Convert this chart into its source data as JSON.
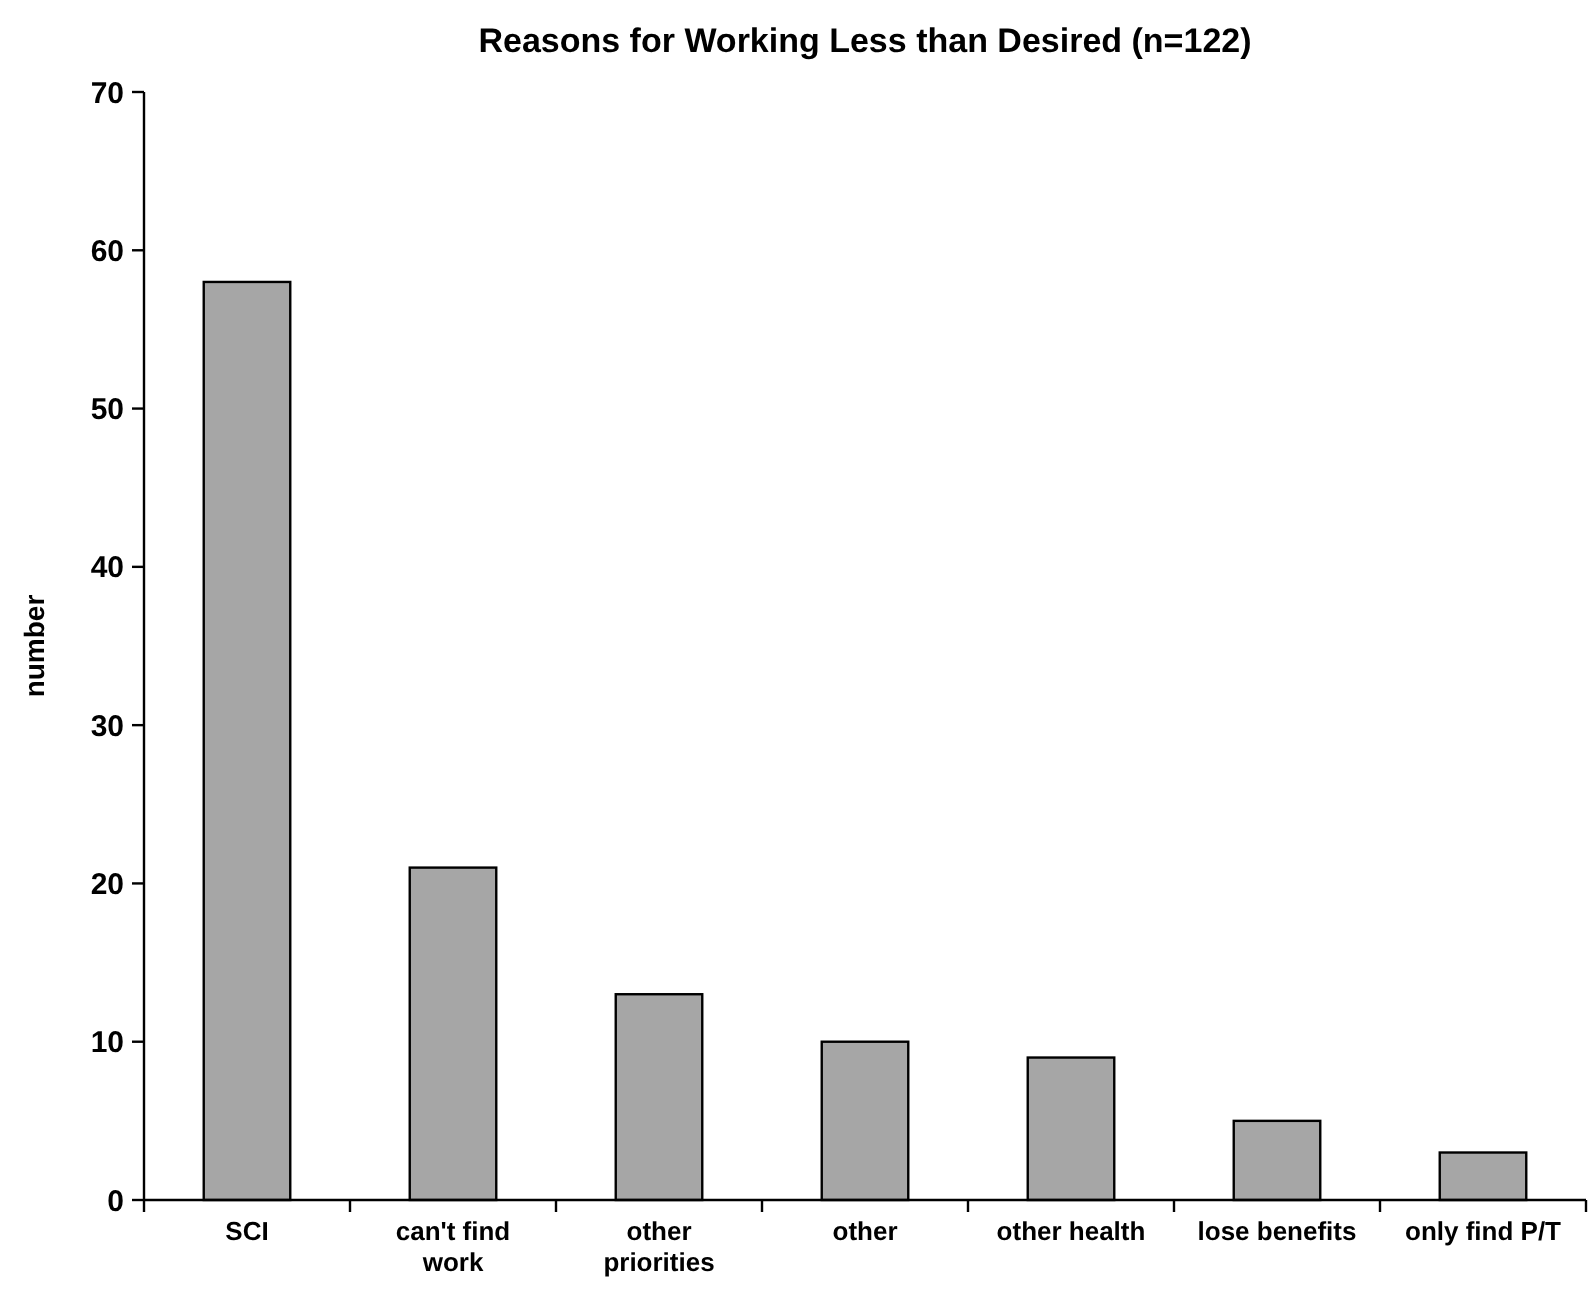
{
  "chart_data": {
    "type": "bar",
    "title": "Reasons for Working Less than Desired (n=122)",
    "ylabel": "number",
    "categories": [
      "SCI",
      "can't find work",
      "other priorities",
      "other",
      "other health",
      "lose benefits",
      "only find P/T"
    ],
    "values": [
      58,
      21,
      13,
      10,
      9,
      5,
      3
    ],
    "color": "#a6a6a6",
    "ylim": [
      0,
      70
    ],
    "yticks": [
      0,
      10,
      20,
      30,
      40,
      50,
      60,
      70
    ],
    "grid": false
  }
}
